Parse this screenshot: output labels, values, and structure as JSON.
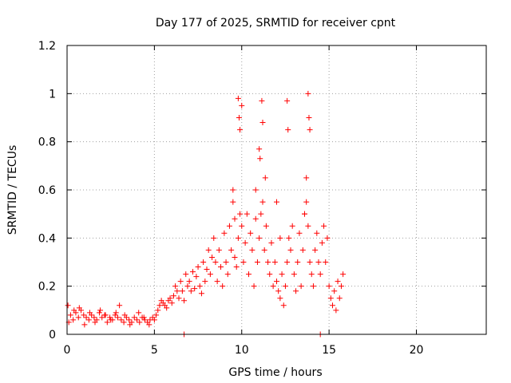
{
  "chart_data": {
    "type": "scatter",
    "title": "Day 177 of 2025, SRMTID for receiver cpnt",
    "xlabel": "GPS time / hours",
    "ylabel": "SRMTID / TECUs",
    "xlim": [
      0,
      24
    ],
    "ylim": [
      0,
      1.2
    ],
    "x_ticks": [
      0,
      5,
      10,
      15,
      20
    ],
    "x_tick_labels": [
      "0",
      "5",
      "10",
      "15",
      "20"
    ],
    "y_ticks": [
      0,
      0.2,
      0.4,
      0.6,
      0.8,
      1.0,
      1.2
    ],
    "y_tick_labels": [
      "0",
      "0.2",
      "0.4",
      "0.6",
      "0.8",
      "1",
      "1.2"
    ],
    "grid": true,
    "legend": "none",
    "marker": "plus",
    "series": [
      {
        "name": "SRMTID",
        "color": "#ff0000",
        "x": [
          0.05,
          0.2,
          0.35,
          0.5,
          0.65,
          0.8,
          0.95,
          1.1,
          1.25,
          1.4,
          1.55,
          1.7,
          1.85,
          2.0,
          2.15,
          2.3,
          2.45,
          2.6,
          2.75,
          2.9,
          3.0,
          3.1,
          3.25,
          3.4,
          3.55,
          3.7,
          3.85,
          4.0,
          4.15,
          4.3,
          4.45,
          4.6,
          4.75,
          4.9,
          5.0,
          5.1,
          5.2,
          5.3,
          5.4,
          5.5,
          5.6,
          5.7,
          5.8,
          5.9,
          6.0,
          6.1,
          6.2,
          6.3,
          6.4,
          6.5,
          6.6,
          6.7,
          6.8,
          6.9,
          7.0,
          7.1,
          7.2,
          7.3,
          7.4,
          7.5,
          7.6,
          7.7,
          7.8,
          7.9,
          8.0,
          8.1,
          8.2,
          8.3,
          8.4,
          8.5,
          8.6,
          8.7,
          8.8,
          8.9,
          9.0,
          9.1,
          9.2,
          9.3,
          9.4,
          9.5,
          9.6,
          9.7,
          9.8,
          9.9,
          10.0,
          10.1,
          10.2,
          10.3,
          10.4,
          10.5,
          10.6,
          10.7,
          10.8,
          10.9,
          11.0,
          11.1,
          11.2,
          11.3,
          11.4,
          11.5,
          11.6,
          11.7,
          11.8,
          11.9,
          12.0,
          12.1,
          12.2,
          12.3,
          12.4,
          12.5,
          12.6,
          12.7,
          12.8,
          12.9,
          13.0,
          13.1,
          13.2,
          13.3,
          13.4,
          13.5,
          13.6,
          13.7,
          13.8,
          13.9,
          14.0,
          14.1,
          14.2,
          14.3,
          14.4,
          14.5,
          14.6,
          14.7,
          14.8,
          14.9,
          15.0,
          15.1,
          15.2,
          15.3,
          15.4,
          15.5,
          15.6,
          15.7,
          15.8,
          0.1,
          0.4,
          0.7,
          1.0,
          1.3,
          1.6,
          1.9,
          2.2,
          2.5,
          2.8,
          3.3,
          3.6,
          4.1,
          4.4,
          4.7,
          9.8,
          9.85,
          9.9,
          10.0,
          11.15,
          11.2,
          12.6,
          12.65,
          13.8,
          13.85,
          13.9,
          10.8,
          11.0,
          13.7,
          13.6,
          9.5,
          9.6,
          11.05,
          11.35,
          12.0,
          12.2,
          6.7,
          14.5
        ],
        "y": [
          0.12,
          0.08,
          0.06,
          0.09,
          0.07,
          0.1,
          0.08,
          0.07,
          0.06,
          0.08,
          0.07,
          0.06,
          0.09,
          0.07,
          0.08,
          0.05,
          0.07,
          0.06,
          0.08,
          0.07,
          0.12,
          0.06,
          0.05,
          0.07,
          0.06,
          0.05,
          0.07,
          0.06,
          0.05,
          0.07,
          0.06,
          0.05,
          0.06,
          0.07,
          0.06,
          0.08,
          0.1,
          0.12,
          0.14,
          0.13,
          0.12,
          0.11,
          0.14,
          0.15,
          0.13,
          0.16,
          0.2,
          0.18,
          0.15,
          0.22,
          0.18,
          0.14,
          0.25,
          0.2,
          0.22,
          0.18,
          0.26,
          0.19,
          0.24,
          0.28,
          0.2,
          0.17,
          0.3,
          0.22,
          0.27,
          0.35,
          0.25,
          0.32,
          0.4,
          0.3,
          0.22,
          0.35,
          0.28,
          0.2,
          0.42,
          0.3,
          0.25,
          0.45,
          0.35,
          0.55,
          0.32,
          0.28,
          0.4,
          0.5,
          0.45,
          0.3,
          0.38,
          0.5,
          0.25,
          0.42,
          0.35,
          0.2,
          0.48,
          0.3,
          0.4,
          0.5,
          0.55,
          0.35,
          0.45,
          0.3,
          0.25,
          0.38,
          0.2,
          0.3,
          0.22,
          0.18,
          0.15,
          0.25,
          0.12,
          0.2,
          0.3,
          0.4,
          0.35,
          0.45,
          0.25,
          0.18,
          0.3,
          0.42,
          0.2,
          0.35,
          0.5,
          0.55,
          0.45,
          0.3,
          0.25,
          0.2,
          0.35,
          0.42,
          0.3,
          0.25,
          0.38,
          0.45,
          0.3,
          0.4,
          0.2,
          0.15,
          0.12,
          0.18,
          0.1,
          0.22,
          0.15,
          0.2,
          0.25,
          0.05,
          0.1,
          0.11,
          0.04,
          0.09,
          0.05,
          0.1,
          0.08,
          0.06,
          0.09,
          0.08,
          0.04,
          0.09,
          0.07,
          0.04,
          0.98,
          0.9,
          0.85,
          0.95,
          0.97,
          0.88,
          0.97,
          0.85,
          1.0,
          0.9,
          0.85,
          0.6,
          0.77,
          0.65,
          0.5,
          0.6,
          0.48,
          0.73,
          0.65,
          0.55,
          0.4,
          0.0,
          0.0
        ]
      }
    ]
  }
}
